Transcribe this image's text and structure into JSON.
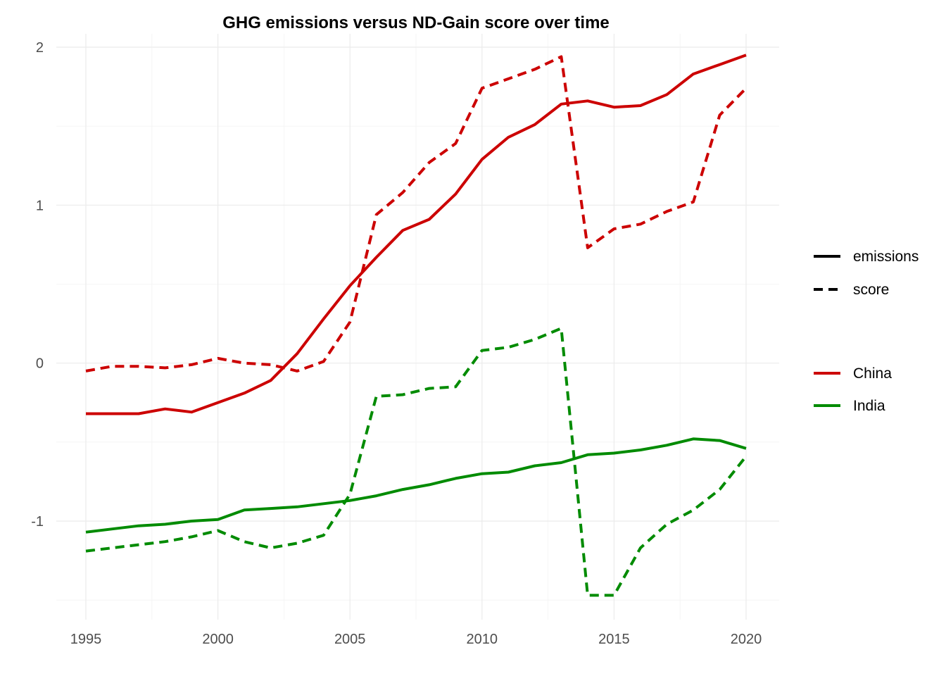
{
  "chart_data": {
    "type": "line",
    "title": "GHG emissions versus ND-Gain score over time",
    "xlabel": "",
    "ylabel": "",
    "xlim": [
      1995,
      2020
    ],
    "ylim": [
      -1.5,
      2
    ],
    "x_ticks": [
      1995,
      2000,
      2005,
      2010,
      2015,
      2020
    ],
    "y_ticks": [
      -1,
      0,
      1,
      2
    ],
    "x_tick_labels": [
      "1995",
      "2000",
      "2005",
      "2010",
      "2015",
      "2020"
    ],
    "y_tick_labels": [
      "-1",
      "0",
      "1",
      "2"
    ],
    "grid": true,
    "legend": {
      "placement": "right",
      "linetype": [
        {
          "label": "emissions",
          "dash": "solid"
        },
        {
          "label": "score",
          "dash": "dashed"
        }
      ],
      "color": [
        {
          "label": "China",
          "color": "#cc0000"
        },
        {
          "label": "India",
          "color": "#008b00"
        }
      ]
    },
    "x": [
      1995,
      1996,
      1997,
      1998,
      1999,
      2000,
      2001,
      2002,
      2003,
      2004,
      2005,
      2006,
      2007,
      2008,
      2009,
      2010,
      2011,
      2012,
      2013,
      2014,
      2015,
      2016,
      2017,
      2018,
      2019,
      2020
    ],
    "series": [
      {
        "name": "China emissions",
        "country": "China",
        "metric": "emissions",
        "color": "#cc0000",
        "dash": "solid",
        "values": [
          -0.32,
          -0.32,
          -0.32,
          -0.29,
          -0.31,
          -0.25,
          -0.19,
          -0.11,
          0.06,
          0.28,
          0.49,
          0.67,
          0.84,
          0.91,
          1.07,
          1.29,
          1.43,
          1.51,
          1.64,
          1.66,
          1.62,
          1.63,
          1.7,
          1.83,
          1.89,
          1.95
        ]
      },
      {
        "name": "China score",
        "country": "China",
        "metric": "score",
        "color": "#cc0000",
        "dash": "dashed",
        "values": [
          -0.05,
          -0.02,
          -0.02,
          -0.03,
          -0.01,
          0.03,
          0.0,
          -0.01,
          -0.05,
          0.01,
          0.26,
          0.94,
          1.08,
          1.27,
          1.39,
          1.74,
          1.8,
          1.86,
          1.94,
          0.73,
          0.85,
          0.88,
          0.96,
          1.02,
          1.57,
          1.74
        ]
      },
      {
        "name": "India emissions",
        "country": "India",
        "metric": "emissions",
        "color": "#008b00",
        "dash": "solid",
        "values": [
          -1.07,
          -1.05,
          -1.03,
          -1.02,
          -1.0,
          -0.99,
          -0.93,
          -0.92,
          -0.91,
          -0.89,
          -0.87,
          -0.84,
          -0.8,
          -0.77,
          -0.73,
          -0.7,
          -0.69,
          -0.65,
          -0.63,
          -0.58,
          -0.57,
          -0.55,
          -0.52,
          -0.48,
          -0.49,
          -0.54
        ]
      },
      {
        "name": "India score",
        "country": "India",
        "metric": "score",
        "color": "#008b00",
        "dash": "dashed",
        "values": [
          -1.19,
          -1.17,
          -1.15,
          -1.13,
          -1.1,
          -1.06,
          -1.13,
          -1.17,
          -1.14,
          -1.09,
          -0.83,
          -0.21,
          -0.2,
          -0.16,
          -0.15,
          0.08,
          0.1,
          0.15,
          0.22,
          -1.47,
          -1.47,
          -1.17,
          -1.02,
          -0.93,
          -0.8,
          -0.59
        ]
      }
    ]
  }
}
